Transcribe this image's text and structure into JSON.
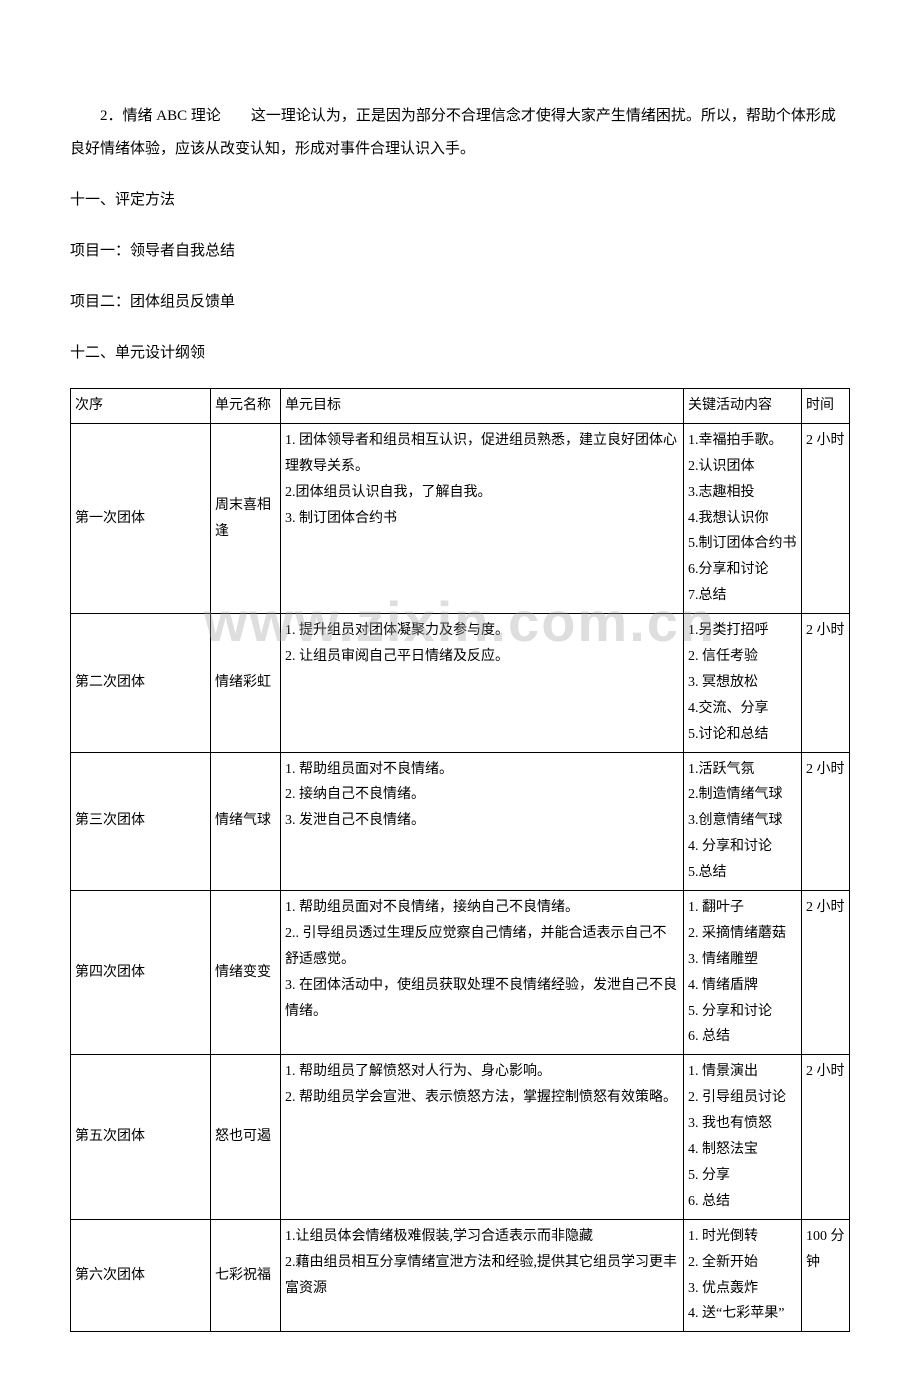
{
  "paragraphs": {
    "p1": "2．情绪 ABC 理论　　这一理论认为，正是因为部分不合理信念才使得大家产生情绪困扰。所以，帮助个体形成良好情绪体验，应该从改变认知，形成对事件合理认识入手。",
    "p2": "十一、评定方法",
    "p3": "项目一：领导者自我总结",
    "p4": "项目二：团体组员反馈单",
    "p5": "十二、单元设计纲领"
  },
  "table": {
    "headers": {
      "seq": "次序",
      "name": "单元名称",
      "goal": "单元目标",
      "act": "关键活动内容",
      "time": "时间"
    },
    "rows": [
      {
        "seq": "第一次团体",
        "name": "周末喜相逢",
        "goal": "1. 团体领导者和组员相互认识，促进组员熟悉，建立良好团体心理教导关系。\n2.团体组员认识自我，了解自我。\n3. 制订团体合约书",
        "act": "1.幸福拍手歌。\n2.认识团体\n3.志趣相投\n4.我想认识你\n5.制订团体合约书\n6.分享和讨论\n7.总结",
        "time": "2 小时"
      },
      {
        "seq": "第二次团体",
        "name": "情绪彩虹",
        "goal": "1. 提升组员对团体凝聚力及参与度。\n2. 让组员审阅自己平日情绪及反应。",
        "act": "1.另类打招呼\n2. 信任考验\n3. 冥想放松\n4.交流、分享\n5.讨论和总结",
        "time": "2 小时"
      },
      {
        "seq": "第三次团体",
        "name": "情绪气球",
        "goal": "1. 帮助组员面对不良情绪。\n2. 接纳自己不良情绪。\n3. 发泄自己不良情绪。",
        "act": "1.活跃气氛\n2.制造情绪气球\n3.创意情绪气球\n4. 分享和讨论\n5.总结",
        "time": "2 小时"
      },
      {
        "seq": "第四次团体",
        "name": "情绪变变",
        "goal": "1. 帮助组员面对不良情绪，接纳自己不良情绪。\n2.. 引导组员透过生理反应觉察自己情绪，并能合适表示自己不舒适感觉。\n3. 在团体活动中，使组员获取处理不良情绪经验，发泄自己不良情绪。",
        "act": "1. 翻叶子\n2. 采摘情绪蘑菇\n3. 情绪雕塑\n4. 情绪盾牌\n5. 分享和讨论\n6. 总结",
        "time": "2 小时"
      },
      {
        "seq": "第五次团体",
        "name": "怒也可遏",
        "goal": "1. 帮助组员了解愤怒对人行为、身心影响。\n2. 帮助组员学会宣泄、表示愤怒方法，掌握控制愤怒有效策略。",
        "act": "1. 情景演出\n2. 引导组员讨论\n3. 我也有愤怒\n4. 制怒法宝\n5. 分享\n6. 总结",
        "time": "2 小时"
      },
      {
        "seq": "第六次团体",
        "name": "七彩祝福",
        "goal": "1.让组员体会情绪极难假装,学习合适表示而非隐藏\n2.藉由组员相互分享情绪宣泄方法和经验,提供其它组员学习更丰富资源",
        "act": "1. 时光倒转\n2. 全新开始\n3. 优点轰炸\n4. 送“七彩苹果”",
        "time": "100 分钟"
      }
    ]
  },
  "watermark": "www.zixin.com.cn"
}
